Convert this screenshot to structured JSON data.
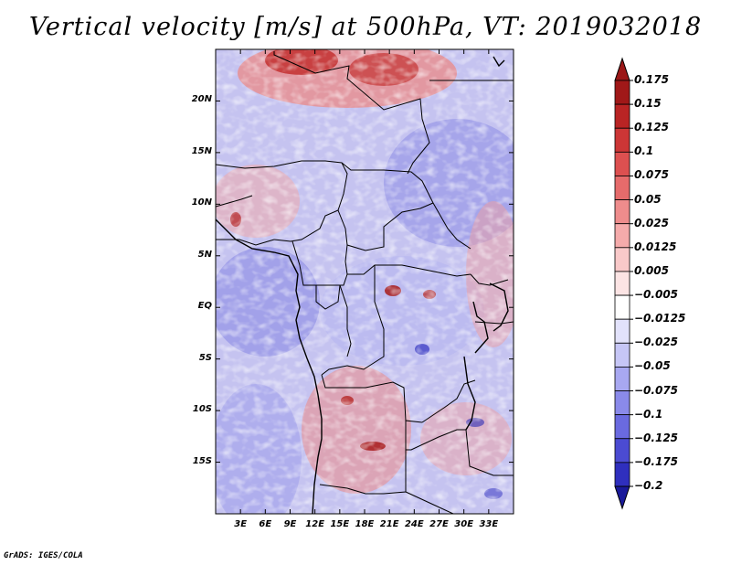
{
  "title": "Vertical velocity [m/s] at 500hPa, VT: 2019032018",
  "credit": "GrADS: IGES/COLA",
  "map": {
    "variable": "Vertical velocity",
    "units": "m/s",
    "level": "500hPa",
    "valid_time": "2019032018",
    "lon_range": [
      0,
      36
    ],
    "lat_range": [
      -20,
      25
    ],
    "lat_ticks": [
      {
        "value": 20,
        "label": "20N"
      },
      {
        "value": 15,
        "label": "15N"
      },
      {
        "value": 10,
        "label": "10N"
      },
      {
        "value": 5,
        "label": "5N"
      },
      {
        "value": 0,
        "label": "EQ"
      },
      {
        "value": -5,
        "label": "5S"
      },
      {
        "value": -10,
        "label": "10S"
      },
      {
        "value": -15,
        "label": "15S"
      }
    ],
    "lon_ticks": [
      {
        "value": 3,
        "label": "3E"
      },
      {
        "value": 6,
        "label": "6E"
      },
      {
        "value": 9,
        "label": "9E"
      },
      {
        "value": 12,
        "label": "12E"
      },
      {
        "value": 15,
        "label": "15E"
      },
      {
        "value": 18,
        "label": "18E"
      },
      {
        "value": 21,
        "label": "21E"
      },
      {
        "value": 24,
        "label": "24E"
      },
      {
        "value": 27,
        "label": "27E"
      },
      {
        "value": 30,
        "label": "30E"
      },
      {
        "value": 33,
        "label": "33E"
      }
    ]
  },
  "colorbar": {
    "levels": [
      {
        "label": "0.175",
        "color": "#a01818"
      },
      {
        "label": "0.15",
        "color": "#b92424"
      },
      {
        "label": "0.125",
        "color": "#cc3636"
      },
      {
        "label": "0.1",
        "color": "#dd5050"
      },
      {
        "label": "0.075",
        "color": "#e66b6b"
      },
      {
        "label": "0.05",
        "color": "#ee8c8c"
      },
      {
        "label": "0.025",
        "color": "#f5abab"
      },
      {
        "label": "0.0125",
        "color": "#f9c9c9"
      },
      {
        "label": "0.005",
        "color": "#fce4e4"
      },
      {
        "label": "−0.005",
        "color": "#ffffff"
      },
      {
        "label": "−0.0125",
        "color": "#e2e2fb"
      },
      {
        "label": "−0.025",
        "color": "#c6c6f6"
      },
      {
        "label": "−0.05",
        "color": "#a8a8f1"
      },
      {
        "label": "−0.075",
        "color": "#8a8aea"
      },
      {
        "label": "−0.1",
        "color": "#6a6ae0"
      },
      {
        "label": "−0.125",
        "color": "#4b4bd2"
      },
      {
        "label": "−0.175",
        "color": "#2f2fbe"
      },
      {
        "label": "−0.2",
        "color": "#1a1aa3"
      }
    ],
    "top_arrow_color": "#9b1717",
    "bottom_arrow_color": "#1a1a9a"
  }
}
